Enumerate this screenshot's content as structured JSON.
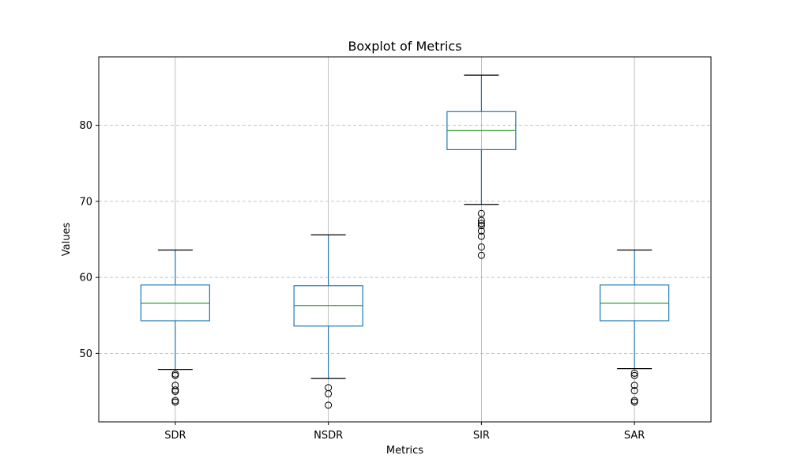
{
  "chart_data": {
    "type": "boxplot",
    "title": "Boxplot of Metrics",
    "xlabel": "Metrics",
    "ylabel": "Values",
    "ylim": [
      41,
      89
    ],
    "yticks": [
      50,
      60,
      70,
      80
    ],
    "grid": {
      "x": "solid",
      "y": "dashed"
    },
    "categories": [
      "SDR",
      "NSDR",
      "SIR",
      "SAR"
    ],
    "boxes": [
      {
        "name": "SDR",
        "whisker_low": 47.9,
        "q1": 54.3,
        "median": 56.6,
        "q3": 59.0,
        "whisker_high": 63.6,
        "outliers": [
          47.3,
          47.1,
          45.8,
          45.2,
          45.0,
          43.8,
          43.6
        ]
      },
      {
        "name": "NSDR",
        "whisker_low": 46.7,
        "q1": 53.6,
        "median": 56.3,
        "q3": 58.9,
        "whisker_high": 65.6,
        "outliers": [
          45.5,
          44.7,
          43.2
        ]
      },
      {
        "name": "SIR",
        "whisker_low": 69.6,
        "q1": 76.8,
        "median": 79.3,
        "q3": 81.8,
        "whisker_high": 86.6,
        "outliers": [
          68.4,
          67.5,
          67.1,
          66.8,
          66.1,
          65.4,
          64.0,
          62.9
        ]
      },
      {
        "name": "SAR",
        "whisker_low": 48.0,
        "q1": 54.3,
        "median": 56.6,
        "q3": 59.0,
        "whisker_high": 63.6,
        "outliers": [
          47.4,
          47.1,
          45.8,
          45.1,
          43.8,
          43.6
        ]
      }
    ],
    "colors": {
      "box": "#1f77b4",
      "median": "#2ca02c",
      "whisker_cap": "#000000",
      "outlier": "#000000",
      "grid": "#b0b0b0"
    }
  }
}
